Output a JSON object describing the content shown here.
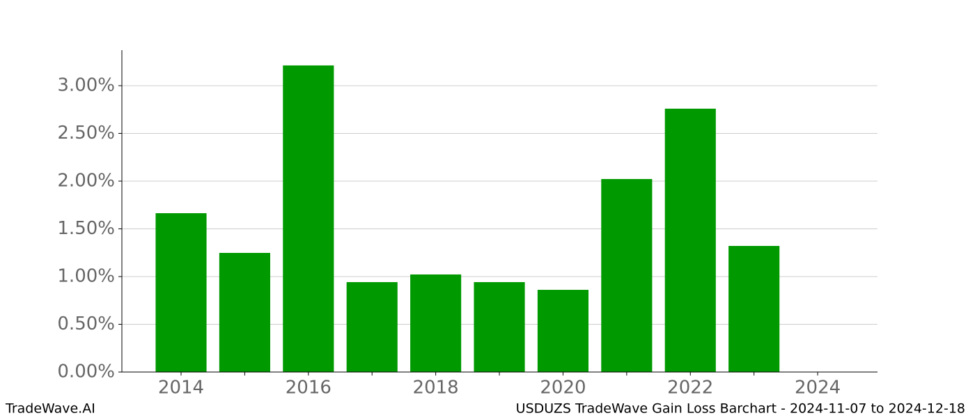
{
  "chart_data": {
    "type": "bar",
    "title": "USDUZS TradeWave Gain Loss Barchart - 2024-11-07 to 2024-12-18",
    "credit": "TradeWave.AI",
    "x": [
      2014,
      2015,
      2016,
      2017,
      2018,
      2019,
      2020,
      2021,
      2022,
      2023
    ],
    "values": [
      1.664,
      1.248,
      3.212,
      0.942,
      1.022,
      0.942,
      0.861,
      2.022,
      2.759,
      1.321
    ],
    "color": "#009900",
    "bar_width": 0.8,
    "xlim": [
      2013.07,
      2024.94
    ],
    "xticks": [
      2014,
      2016,
      2018,
      2020,
      2022,
      2024
    ],
    "xminorticks": [
      2015,
      2017,
      2019,
      2021,
      2023
    ],
    "ylim": [
      0,
      3.372
    ],
    "yticks": [
      {
        "value": 0,
        "label": "0.00%"
      },
      {
        "value": 0.5,
        "label": "0.50%"
      },
      {
        "value": 1,
        "label": "1.00%"
      },
      {
        "value": 1.5,
        "label": "1.50%"
      },
      {
        "value": 2,
        "label": "2.00%"
      },
      {
        "value": 2.5,
        "label": "2.50%"
      },
      {
        "value": 3,
        "label": "3.00%"
      }
    ],
    "grid": true
  }
}
